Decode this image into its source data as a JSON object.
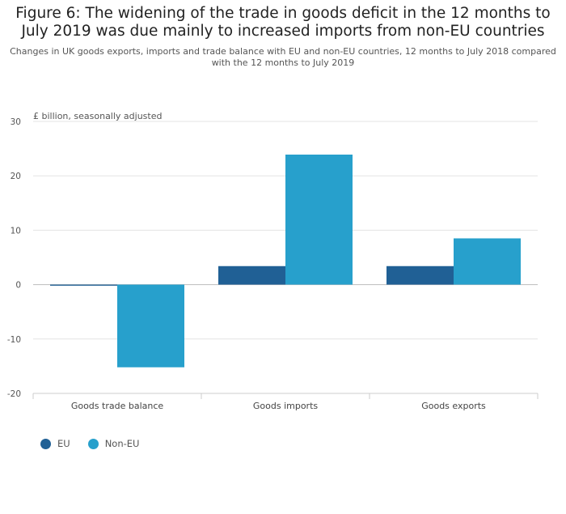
{
  "figure": {
    "title": "Figure 6: The widening of the trade in goods deficit in the 12 months to July 2019 was due mainly to increased imports from non-EU countries",
    "subtitle": "Changes in UK goods exports, imports and trade balance with EU and non-EU countries, 12 months to July 2018 compared with the 12 months to July 2019"
  },
  "chart_data": {
    "type": "bar",
    "title": "Figure 6: The widening of the trade in goods deficit in the 12 months to July 2019 was due mainly to increased imports from non-EU countries",
    "ylabel": "£ billion, seasonally adjusted",
    "xlabel": "",
    "categories": [
      "Goods trade balance",
      "Goods imports",
      "Goods exports"
    ],
    "series": [
      {
        "name": "EU",
        "values": [
          -0.2,
          3.4,
          3.4
        ],
        "color": "#206095"
      },
      {
        "name": "Non-EU",
        "values": [
          -15.2,
          23.9,
          8.5
        ],
        "color": "#27a0cc"
      }
    ],
    "ylim": [
      -20,
      30
    ],
    "yticks": [
      30,
      20,
      10,
      0,
      -10,
      -20
    ],
    "grid": true,
    "legend_position": "bottom-left"
  }
}
